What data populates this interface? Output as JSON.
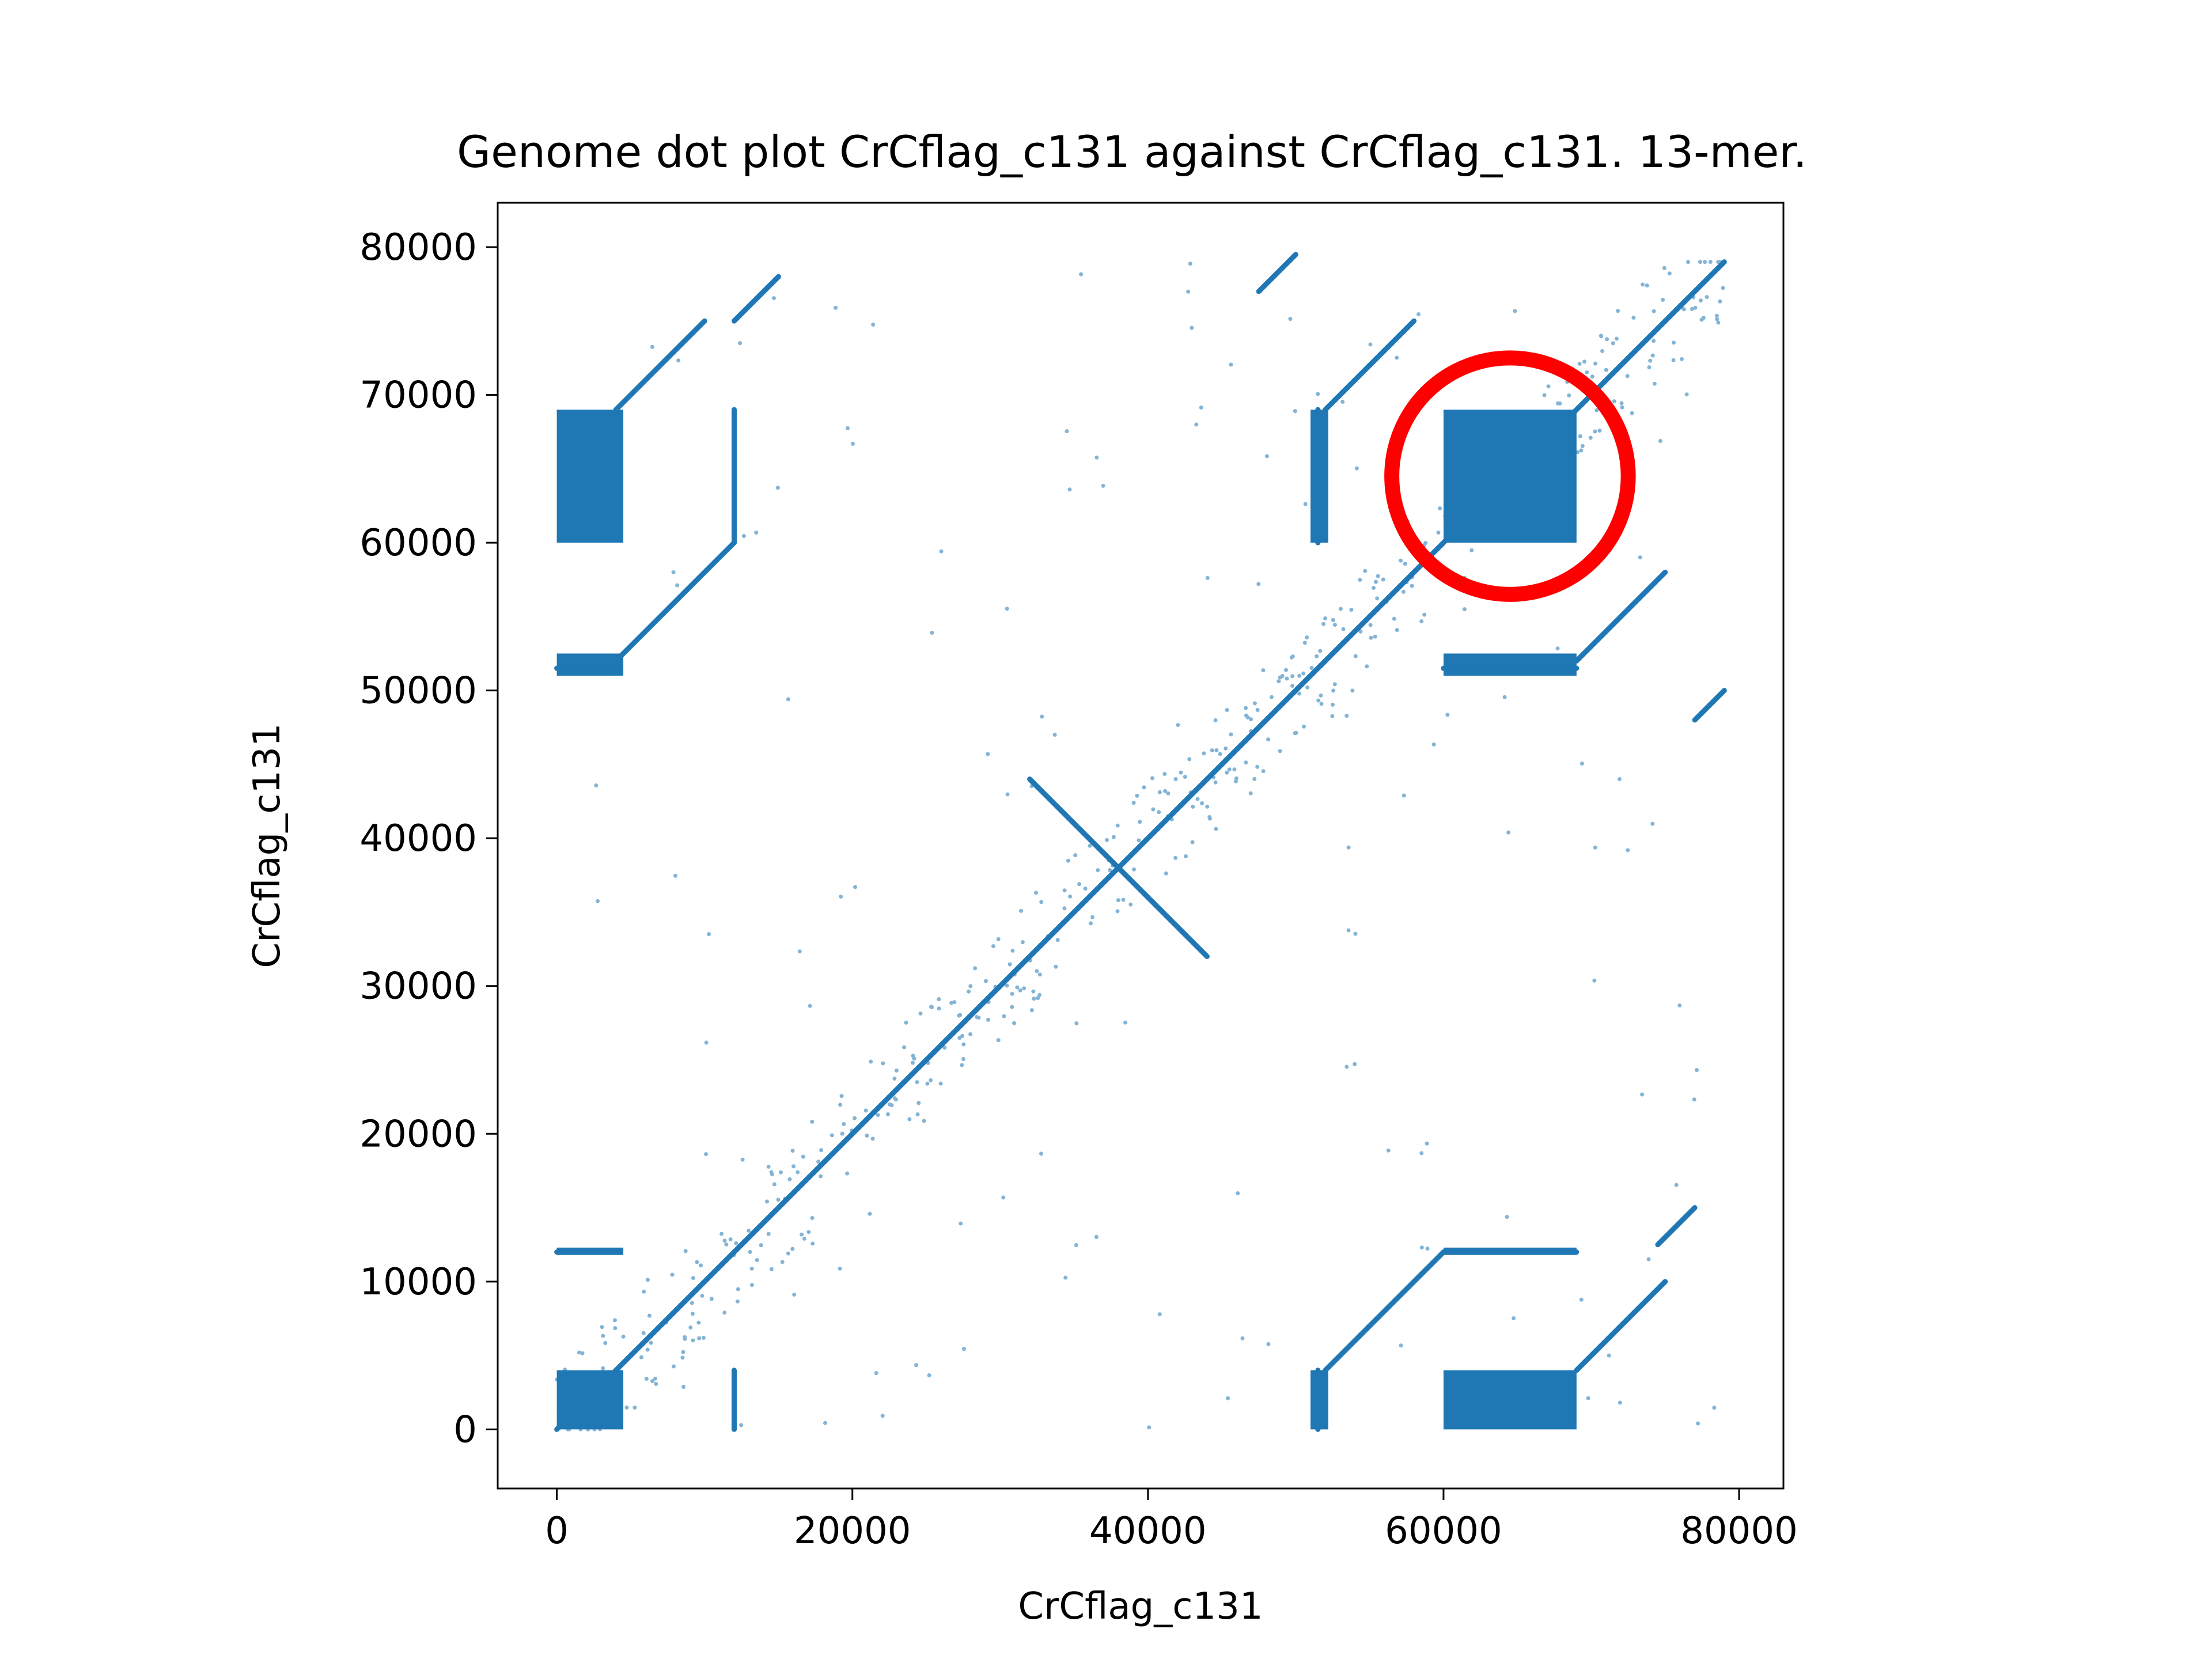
{
  "chart_data": {
    "type": "scatter",
    "title": "Genome dot plot CrCflag_c131 against CrCflag_c131. 13-mer.",
    "xlabel": "CrCflag_c131",
    "ylabel": "CrCflag_c131",
    "xlim": [
      -4000,
      83000
    ],
    "ylim": [
      -4000,
      83000
    ],
    "xticks": [
      0,
      20000,
      40000,
      60000,
      80000
    ],
    "yticks": [
      0,
      10000,
      20000,
      30000,
      40000,
      50000,
      60000,
      70000,
      80000
    ],
    "grid": false,
    "legend": "none",
    "series_color": "#1f77b4",
    "annotation_color": "#ff0000",
    "segments": [
      {
        "x": [
          0,
          79000
        ],
        "y": [
          0,
          79000
        ]
      },
      {
        "x": [
          32000,
          44000
        ],
        "y": [
          44000,
          32000
        ]
      },
      {
        "x": [
          4000,
          10000
        ],
        "y": [
          69000,
          75000
        ]
      },
      {
        "x": [
          12000,
          15000
        ],
        "y": [
          75000,
          78000
        ]
      },
      {
        "x": [
          4000,
          12000
        ],
        "y": [
          52000,
          60000
        ]
      },
      {
        "x": [
          12000,
          12000
        ],
        "y": [
          60000,
          69000
        ]
      },
      {
        "x": [
          47500,
          50000
        ],
        "y": [
          77000,
          79500
        ]
      },
      {
        "x": [
          52000,
          58000
        ],
        "y": [
          69000,
          75000
        ]
      },
      {
        "x": [
          69000,
          75000
        ],
        "y": [
          52000,
          58000
        ]
      },
      {
        "x": [
          77000,
          79000
        ],
        "y": [
          48000,
          50000
        ]
      },
      {
        "x": [
          52000,
          60000
        ],
        "y": [
          4000,
          12000
        ]
      },
      {
        "x": [
          60000,
          69000
        ],
        "y": [
          12000,
          12000
        ]
      },
      {
        "x": [
          69000,
          75000
        ],
        "y": [
          4000,
          10000
        ]
      },
      {
        "x": [
          74500,
          77000
        ],
        "y": [
          12500,
          15000
        ]
      },
      {
        "x": [
          0,
          4000
        ],
        "y": [
          12000,
          12000
        ]
      },
      {
        "x": [
          0,
          4000
        ],
        "y": [
          51500,
          51500
        ]
      },
      {
        "x": [
          60000,
          69000
        ],
        "y": [
          51500,
          51500
        ]
      },
      {
        "x": [
          12000,
          12000
        ],
        "y": [
          0,
          4000
        ]
      },
      {
        "x": [
          51500,
          51500
        ],
        "y": [
          60000,
          69000
        ]
      },
      {
        "x": [
          51500,
          51500
        ],
        "y": [
          0,
          4000
        ]
      }
    ],
    "blocks": [
      {
        "x": [
          0,
          4500
        ],
        "y": [
          60000,
          69000
        ]
      },
      {
        "x": [
          60000,
          69000
        ],
        "y": [
          60000,
          69000
        ]
      },
      {
        "x": [
          0,
          4500
        ],
        "y": [
          0,
          4000
        ]
      },
      {
        "x": [
          60000,
          69000
        ],
        "y": [
          0,
          4000
        ]
      },
      {
        "x": [
          51000,
          52200
        ],
        "y": [
          60000,
          69000
        ]
      },
      {
        "x": [
          51000,
          52200
        ],
        "y": [
          0,
          4000
        ]
      },
      {
        "x": [
          0,
          4500
        ],
        "y": [
          51000,
          52500
        ]
      },
      {
        "x": [
          60000,
          69000
        ],
        "y": [
          51000,
          52500
        ]
      },
      {
        "x": [
          0,
          4500
        ],
        "y": [
          11800,
          12300
        ]
      },
      {
        "x": [
          60000,
          69000
        ],
        "y": [
          11800,
          12300
        ]
      }
    ],
    "annotation_circle": {
      "cx": 64500,
      "cy": 64500,
      "r": 8000
    }
  }
}
